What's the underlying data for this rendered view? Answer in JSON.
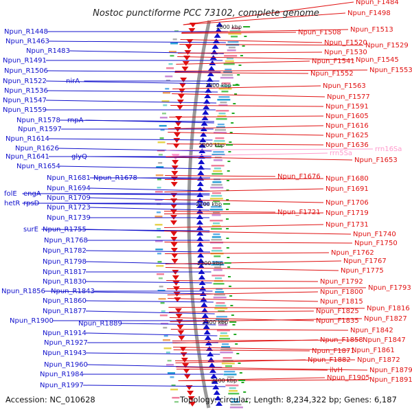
{
  "title": "Nostoc punctiforme PCC 73102, complete genome",
  "accession": "Accession: NC_010628",
  "topology": "Topology: circular; Length: 8,234,322 bp; Genes: 6,187",
  "colors": {
    "reverse": "#1010cc",
    "forward": "#e01010",
    "rrna": "#ff99cc",
    "backbone": "#999999",
    "kbp_tick": "#22aa22"
  },
  "kbp_marks": [
    "1800 kbp",
    "1900 kbp",
    "2000 kbp",
    "2100 kbp",
    "2200 kbp",
    "2300 kbp",
    "2400 kbp"
  ],
  "left_labels": [
    {
      "text": "Npun_R1448"
    },
    {
      "text": "Npun_R1463"
    },
    {
      "text": "Npun_R1483"
    },
    {
      "text": "Npun_R1491"
    },
    {
      "text": "Npun_R1506"
    },
    {
      "text": "Npun_R1522"
    },
    {
      "text": "nirA"
    },
    {
      "text": "Npun_R1536"
    },
    {
      "text": "Npun_R1547"
    },
    {
      "text": "Npun_R1559"
    },
    {
      "text": "Npun_R1578"
    },
    {
      "text": "rnpA"
    },
    {
      "text": "Npun_R1597"
    },
    {
      "text": "Npun_R1614"
    },
    {
      "text": "Npun_R1626"
    },
    {
      "text": "Npun_R1641"
    },
    {
      "text": "glyQ"
    },
    {
      "text": "Npun_R1654"
    },
    {
      "text": "Npun_R1681"
    },
    {
      "text": "Npun_R1678"
    },
    {
      "text": "Npun_R1694"
    },
    {
      "text": "folE"
    },
    {
      "text": "engA"
    },
    {
      "text": "Npun_R1709"
    },
    {
      "text": "hetR"
    },
    {
      "text": "rpsD"
    },
    {
      "text": "Npun_R1723"
    },
    {
      "text": "Npun_R1739"
    },
    {
      "text": "surE"
    },
    {
      "text": "Npun_R1755"
    },
    {
      "text": "Npun_R1768"
    },
    {
      "text": "Npun_R1782"
    },
    {
      "text": "Npun_R1798"
    },
    {
      "text": "Npun_R1817"
    },
    {
      "text": "Npun_R1830"
    },
    {
      "text": "Npun_R1856"
    },
    {
      "text": "Npun_R1843"
    },
    {
      "text": "Npun_R1860"
    },
    {
      "text": "Npun_R1877"
    },
    {
      "text": "Npun_R1900"
    },
    {
      "text": "Npun_R1889"
    },
    {
      "text": "Npun_R1914"
    },
    {
      "text": "Npun_R1927"
    },
    {
      "text": "Npun_R1943"
    },
    {
      "text": "Npun_R1960"
    },
    {
      "text": "Npun_R1984"
    },
    {
      "text": "Npun_R1997"
    }
  ],
  "right_labels": [
    {
      "text": "Npun_F1484"
    },
    {
      "text": "Npun_F1498"
    },
    {
      "text": "Npun_F1508"
    },
    {
      "text": "Npun_F1513"
    },
    {
      "text": "Npun_F1520"
    },
    {
      "text": "Npun_F1529"
    },
    {
      "text": "Npun_F1530"
    },
    {
      "text": "Npun_F1541"
    },
    {
      "text": "Npun_F1545"
    },
    {
      "text": "Npun_F1552"
    },
    {
      "text": "Npun_F1553"
    },
    {
      "text": "Npun_F1563"
    },
    {
      "text": "Npun_F1577"
    },
    {
      "text": "Npun_F1591"
    },
    {
      "text": "Npun_F1605"
    },
    {
      "text": "Npun_F1616"
    },
    {
      "text": "Npun_F1625"
    },
    {
      "text": "Npun_F1636"
    },
    {
      "text": "rrn16Sa"
    },
    {
      "text": "rrn5Sa"
    },
    {
      "text": "Npun_F1653"
    },
    {
      "text": "Npun_F1676"
    },
    {
      "text": "Npun_F1680"
    },
    {
      "text": "Npun_F1691"
    },
    {
      "text": "Npun_F1706"
    },
    {
      "text": "Npun_F1721"
    },
    {
      "text": "Npun_F1719"
    },
    {
      "text": "Npun_F1731"
    },
    {
      "text": "Npun_F1740"
    },
    {
      "text": "Npun_F1750"
    },
    {
      "text": "Npun_F1762"
    },
    {
      "text": "Npun_F1767"
    },
    {
      "text": "Npun_F1775"
    },
    {
      "text": "Npun_F1792"
    },
    {
      "text": "Npun_F1793"
    },
    {
      "text": "Npun_F1800"
    },
    {
      "text": "Npun_F1815"
    },
    {
      "text": "Npun_F1816"
    },
    {
      "text": "Npun_F1825"
    },
    {
      "text": "Npun_F1827"
    },
    {
      "text": "Npun_F1835"
    },
    {
      "text": "Npun_F1842"
    },
    {
      "text": "Npun_F1847"
    },
    {
      "text": "Npun_F1858"
    },
    {
      "text": "Npun_F1861"
    },
    {
      "text": "Npun_F1871"
    },
    {
      "text": "Npun_F1872"
    },
    {
      "text": "Npun_F1882"
    },
    {
      "text": "Npun_F1879"
    },
    {
      "text": "ilvH"
    },
    {
      "text": "Npun_F1891"
    },
    {
      "text": "Npun_F1905"
    }
  ]
}
